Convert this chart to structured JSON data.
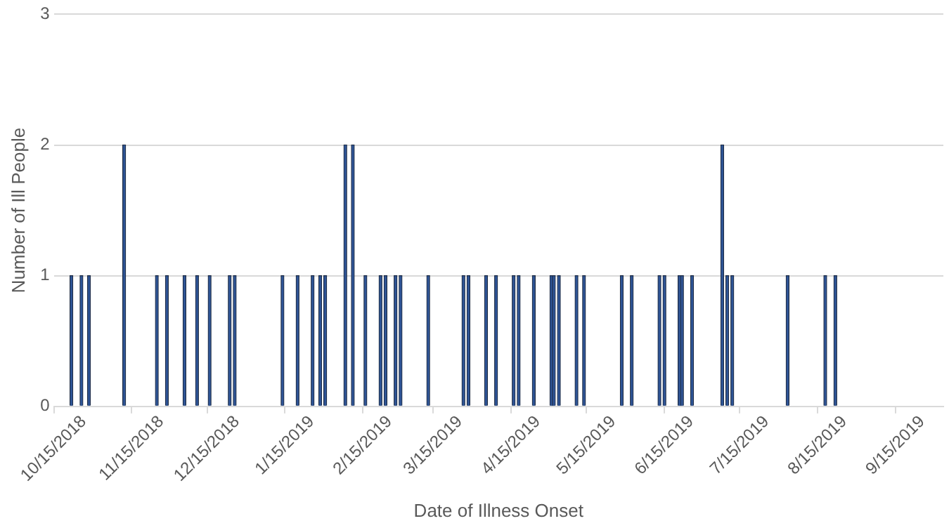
{
  "chart_data": {
    "type": "bar",
    "xlabel": "Date of Illness Onset",
    "ylabel": "Number of Ill People",
    "x": [
      "2018-10-22",
      "2018-10-26",
      "2018-10-29",
      "2018-11-12",
      "2018-11-25",
      "2018-11-29",
      "2018-12-06",
      "2018-12-11",
      "2018-12-16",
      "2018-12-24",
      "2018-12-26",
      "2019-01-14",
      "2019-01-20",
      "2019-01-26",
      "2019-01-29",
      "2019-01-31",
      "2019-02-08",
      "2019-02-11",
      "2019-02-16",
      "2019-02-22",
      "2019-02-24",
      "2019-02-28",
      "2019-03-02",
      "2019-03-13",
      "2019-03-27",
      "2019-03-29",
      "2019-04-05",
      "2019-04-09",
      "2019-04-16",
      "2019-04-18",
      "2019-04-24",
      "2019-05-01",
      "2019-05-02",
      "2019-05-04",
      "2019-05-11",
      "2019-05-14",
      "2019-05-29",
      "2019-06-02",
      "2019-06-13",
      "2019-06-15",
      "2019-06-21",
      "2019-06-22",
      "2019-06-26",
      "2019-07-08",
      "2019-07-10",
      "2019-07-12",
      "2019-08-03",
      "2019-08-18",
      "2019-08-22"
    ],
    "values": [
      1,
      1,
      1,
      2,
      1,
      1,
      1,
      1,
      1,
      1,
      1,
      1,
      1,
      1,
      1,
      1,
      2,
      2,
      1,
      1,
      1,
      1,
      1,
      1,
      1,
      1,
      1,
      1,
      1,
      1,
      1,
      1,
      1,
      1,
      1,
      1,
      1,
      1,
      1,
      1,
      1,
      1,
      1,
      2,
      1,
      1,
      1,
      1,
      1
    ],
    "color": "#2f5597",
    "xlim": [
      "2018-10-15",
      "2019-10-04"
    ],
    "xticks": [
      {
        "value": "2018-10-15",
        "label": "10/15/2018"
      },
      {
        "value": "2018-11-15",
        "label": "11/15/2018"
      },
      {
        "value": "2018-12-15",
        "label": "12/15/2018"
      },
      {
        "value": "2019-01-15",
        "label": "1/15/2019"
      },
      {
        "value": "2019-02-15",
        "label": "2/15/2019"
      },
      {
        "value": "2019-03-15",
        "label": "3/15/2019"
      },
      {
        "value": "2019-04-15",
        "label": "4/15/2019"
      },
      {
        "value": "2019-05-15",
        "label": "5/15/2019"
      },
      {
        "value": "2019-06-15",
        "label": "6/15/2019"
      },
      {
        "value": "2019-07-15",
        "label": "7/15/2019"
      },
      {
        "value": "2019-08-15",
        "label": "8/15/2019"
      },
      {
        "value": "2019-09-15",
        "label": "9/15/2019"
      }
    ],
    "ylim": [
      0,
      3
    ],
    "yticks": [
      0,
      1,
      2,
      3
    ],
    "grid": "y"
  }
}
